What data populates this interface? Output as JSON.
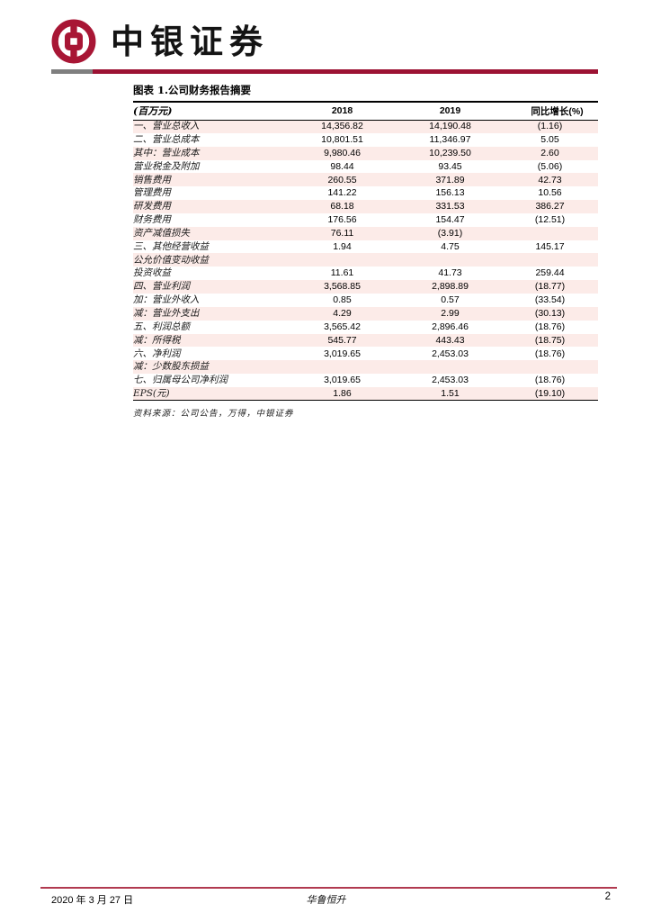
{
  "brand": {
    "name": "中银证券",
    "logo_icon": "bank-of-china-emblem"
  },
  "colors": {
    "brand_red": "#a81635",
    "header_rule_red": "#9c1233",
    "header_rule_gray": "#7f7f7f",
    "stripe_pink": "#fcebe8",
    "negative_red": "#ff0000",
    "footer_rule_red": "#b13a50"
  },
  "table": {
    "title": "图表 1.公司财务报告摘要",
    "columns": [
      "(百万元)",
      "2018",
      "2019",
      "同比增长(%)"
    ],
    "rows": [
      [
        "一、营业总收入",
        "14,356.82",
        "14,190.48",
        "(1.16)"
      ],
      [
        "二、营业总成本",
        "10,801.51",
        "11,346.97",
        "5.05"
      ],
      [
        "其中：营业成本",
        "9,980.46",
        "10,239.50",
        "2.60"
      ],
      [
        "营业税金及附加",
        "98.44",
        "93.45",
        "(5.06)"
      ],
      [
        "销售费用",
        "260.55",
        "371.89",
        "42.73"
      ],
      [
        "管理费用",
        "141.22",
        "156.13",
        "10.56"
      ],
      [
        "研发费用",
        "68.18",
        "331.53",
        "386.27"
      ],
      [
        "财务费用",
        "176.56",
        "154.47",
        "(12.51)"
      ],
      [
        "资产减值损失",
        "76.11",
        "(3.91)",
        ""
      ],
      [
        "三、其他经营收益",
        "1.94",
        "4.75",
        "145.17"
      ],
      [
        "公允价值变动收益",
        "",
        "",
        ""
      ],
      [
        "投资收益",
        "11.61",
        "41.73",
        "259.44"
      ],
      [
        "四、营业利润",
        "3,568.85",
        "2,898.89",
        "(18.77)"
      ],
      [
        "加：营业外收入",
        "0.85",
        "0.57",
        "(33.54)"
      ],
      [
        "减：营业外支出",
        "4.29",
        "2.99",
        "(30.13)"
      ],
      [
        "五、利润总额",
        "3,565.42",
        "2,896.46",
        "(18.76)"
      ],
      [
        "减：所得税",
        "545.77",
        "443.43",
        "(18.75)"
      ],
      [
        "六、净利润",
        "3,019.65",
        "2,453.03",
        "(18.76)"
      ],
      [
        "减：少数股东损益",
        "",
        "",
        ""
      ],
      [
        "七、归属母公司净利润",
        "3,019.65",
        "2,453.03",
        "(18.76)"
      ],
      [
        "EPS(元)",
        "1.86",
        "1.51",
        "(19.10)"
      ]
    ],
    "source": "资料来源：公司公告，万得，中银证券"
  },
  "footer": {
    "date": "2020 年 3 月 27 日",
    "company": "华鲁恒升",
    "page_number": "2"
  }
}
